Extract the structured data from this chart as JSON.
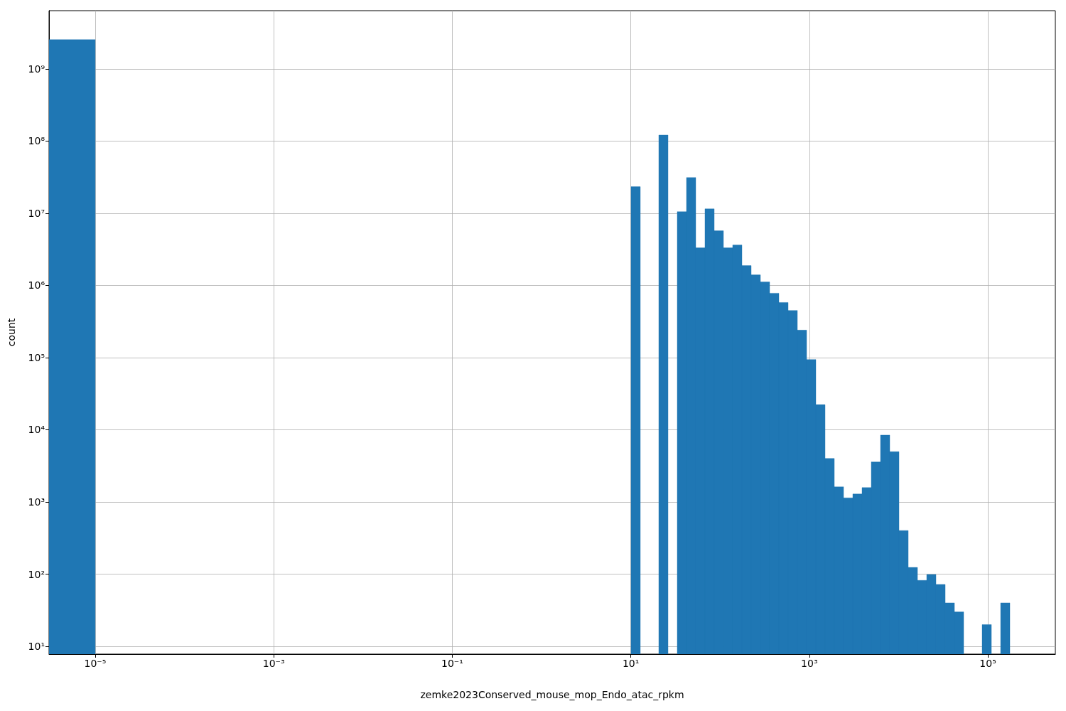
{
  "chart_data": {
    "type": "histogram",
    "xlabel": "zemke2023Conserved_mouse_mop_Endo_atac_rpkm",
    "ylabel": "count",
    "color": "#1f77b4",
    "log": "xy",
    "grid": true,
    "xlim": [
      3.04e-06,
      570000
    ],
    "ylim": [
      7.8,
      6400000000.0
    ],
    "xticks": [
      {
        "value": 1e-05,
        "label": "10⁻⁵"
      },
      {
        "value": 0.001,
        "label": "10⁻³"
      },
      {
        "value": 0.1,
        "label": "10⁻¹"
      },
      {
        "value": 10,
        "label": "10¹"
      },
      {
        "value": 1000,
        "label": "10³"
      },
      {
        "value": 100000,
        "label": "10⁵"
      }
    ],
    "yticks": [
      {
        "value": 10,
        "label": "10¹"
      },
      {
        "value": 100,
        "label": "10²"
      },
      {
        "value": 1000,
        "label": "10³"
      },
      {
        "value": 10000,
        "label": "10⁴"
      },
      {
        "value": 100000,
        "label": "10⁵"
      },
      {
        "value": 1000000,
        "label": "10⁶"
      },
      {
        "value": 10000000,
        "label": "10⁷"
      },
      {
        "value": 100000000,
        "label": "10⁸"
      },
      {
        "value": 1000000000,
        "label": "10⁹"
      }
    ],
    "bins": [
      3.04e-06,
      1e-05,
      10.07,
      12.78,
      20.59,
      26.12,
      33.15,
      42.07,
      53.4,
      67.76,
      86.0,
      109.1,
      138.5,
      175.8,
      223.1,
      283.1,
      359.3,
      456.0,
      578.8,
      734.5,
      932.2,
      1183,
      1501,
      1905,
      2418,
      3069,
      3895,
      4943,
      6273,
      7962,
      10104,
      12823,
      16275,
      20654,
      26213,
      33266,
      42218,
      53580,
      86298,
      109522,
      138995,
      176400
    ],
    "values": [
      2540000000.0,
      null,
      23300000.0,
      null,
      121000000.0,
      null,
      10500000.0,
      31200000.0,
      3320000.0,
      11500000.0,
      5710000.0,
      3320000.0,
      3630000.0,
      1880000.0,
      1400000.0,
      1120000.0,
      780000.0,
      580000.0,
      450000.0,
      240000.0,
      94000.0,
      22300.0,
      4000,
      1620,
      1140,
      1290,
      1580,
      3590,
      8450,
      4970,
      402,
      124,
      82,
      99,
      72,
      40,
      30,
      null,
      20,
      null,
      40
    ]
  }
}
